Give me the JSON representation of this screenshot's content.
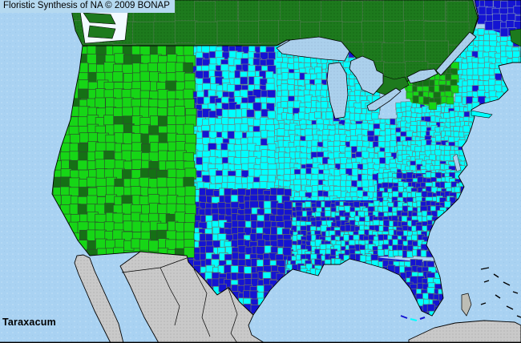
{
  "title_bar": {
    "text": "Floristic Synthesis of NA © 2009 BONAP"
  },
  "footer": {
    "taxon": "Taraxacum"
  },
  "colors": {
    "ocean": "#a9d2f2",
    "lake": "#abd0ec",
    "title_bg": "#b5d9f0",
    "title_text": "#000000",
    "taxon_text": "#000000",
    "canada_green": "#1d7a1d",
    "bright_green": "#16d616",
    "dark_green": "#157015",
    "cyan": "#00ffff",
    "blue": "#1414d2",
    "mexico_gray": "#c9c9c9",
    "island_gray": "#bdbdb5",
    "sound_white": "#f2faff",
    "county_border": "#708080",
    "coast": "#000000"
  },
  "map_data": {
    "type": "choropleth_county_distribution",
    "taxon": "Taraxacum",
    "attribution": "Floristic Synthesis of NA © 2009 BONAP",
    "regions": [
      {
        "id": "canada",
        "label": "Canada",
        "cell": 26,
        "seed": 7,
        "palette": [
          [
            "canada_green",
            1
          ]
        ],
        "stroke": "#4d7a4d"
      },
      {
        "id": "midwest",
        "label": "Ohio Valley and central Midwest",
        "cell": 7,
        "seed": 21,
        "palette": [
          [
            "cyan",
            0.86
          ],
          [
            "blue",
            0.14
          ]
        ],
        "stroke": "#708080"
      },
      {
        "id": "mn_wi_mi",
        "label": "Upper Great Lakes states",
        "cell": 7,
        "seed": 22,
        "palette": [
          [
            "cyan",
            0.93
          ],
          [
            "blue",
            0.07
          ]
        ],
        "stroke": "#708080"
      },
      {
        "id": "northeast",
        "label": "Mid-Atlantic states",
        "cell": 6,
        "seed": 23,
        "palette": [
          [
            "cyan",
            0.9
          ],
          [
            "blue",
            0.1
          ]
        ],
        "stroke": "#708080"
      },
      {
        "id": "southeast",
        "label": "Southeastern states",
        "cell": 6,
        "seed": 24,
        "palette": [
          [
            "blue",
            0.47
          ],
          [
            "cyan",
            0.53
          ]
        ],
        "stroke": "#5f7070"
      },
      {
        "id": "florida",
        "label": "Florida",
        "cell": 7,
        "seed": 25,
        "palette": [
          [
            "blue",
            0.58
          ],
          [
            "cyan",
            0.42
          ]
        ],
        "stroke": "#5f7070"
      },
      {
        "id": "dakotas",
        "label": "Northern Plains",
        "cell": 8,
        "seed": 26,
        "palette": [
          [
            "cyan",
            0.52
          ],
          [
            "blue",
            0.48
          ]
        ],
        "stroke": "#708080"
      },
      {
        "id": "ne_ks",
        "label": "Central Plains",
        "cell": 8,
        "seed": 27,
        "palette": [
          [
            "cyan",
            0.86
          ],
          [
            "blue",
            0.14
          ]
        ],
        "stroke": "#708080"
      },
      {
        "id": "ok_tx",
        "label": "Texas and Oklahoma",
        "cell": 8,
        "seed": 28,
        "palette": [
          [
            "blue",
            0.82
          ],
          [
            "cyan",
            0.18
          ]
        ],
        "stroke": "#6f6f5f"
      },
      {
        "id": "west_green",
        "label": "Western states",
        "cell": 11,
        "seed": 29,
        "palette": [
          [
            "bright_green",
            0.86
          ],
          [
            "dark_green",
            0.14
          ]
        ],
        "stroke": "#2d4d2d"
      },
      {
        "id": "new_england",
        "label": "New England and Maritimes",
        "cell": 7,
        "seed": 30,
        "palette": [
          [
            "cyan",
            0.96
          ],
          [
            "blue",
            0.04
          ]
        ],
        "stroke": "#708080"
      },
      {
        "id": "ny_green",
        "label": "New York",
        "cell": 7,
        "seed": 31,
        "palette": [
          [
            "bright_green",
            0.55
          ],
          [
            "dark_green",
            0.45
          ]
        ],
        "stroke": "#3d6d3d"
      },
      {
        "id": "maine_blue",
        "label": "Northern Maine",
        "cell": 9,
        "seed": 32,
        "palette": [
          [
            "blue",
            1
          ]
        ],
        "stroke": "#7788bb"
      }
    ]
  }
}
